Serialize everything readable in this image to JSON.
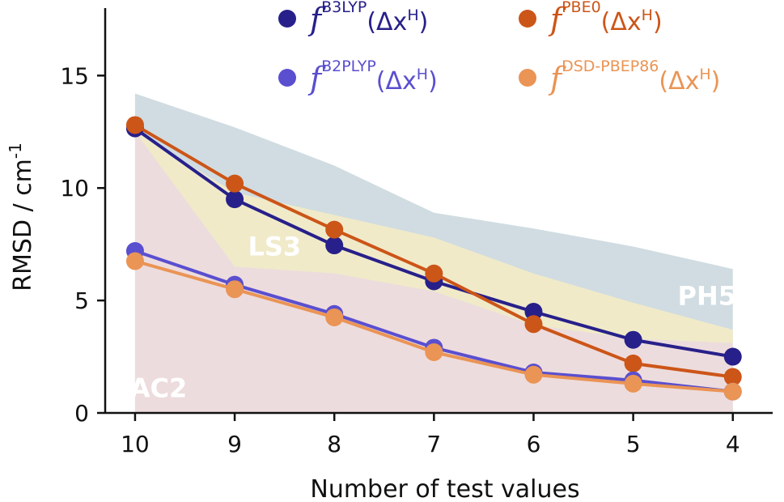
{
  "chart_data": {
    "type": "line",
    "title": "",
    "xlabel": "Number of test values",
    "ylabel_main": "RMSD / cm",
    "ylabel_sup": "-1",
    "x": [
      10,
      9,
      8,
      7,
      6,
      5,
      4
    ],
    "x_ticks": [
      "10",
      "9",
      "8",
      "7",
      "6",
      "5",
      "4"
    ],
    "xlim": [
      10.3,
      3.6
    ],
    "y_ticks": [
      "0",
      "5",
      "10",
      "15"
    ],
    "y_tick_values": [
      0,
      5,
      10,
      15
    ],
    "ylim": [
      0,
      18
    ],
    "grid": false,
    "legend_position": "top",
    "regions": [
      {
        "label": "PH5",
        "color": "#c8d6dc",
        "upper": [
          14.2,
          12.7,
          11.0,
          8.9,
          8.2,
          7.4,
          6.4
        ],
        "lower": [
          0,
          0,
          0,
          0,
          0,
          0,
          0
        ]
      },
      {
        "label": "LS3",
        "color": "#f6ecc4",
        "upper": [
          12.5,
          9.8,
          8.8,
          7.8,
          6.2,
          4.9,
          3.7
        ],
        "lower": [
          12.5,
          6.5,
          6.2,
          5.4,
          3.9,
          3.3,
          3.1
        ]
      },
      {
        "label": "AC2",
        "color": "#f2dcdc",
        "upper": [
          12.5,
          6.5,
          6.2,
          5.4,
          3.9,
          3.3,
          3.1
        ],
        "lower": [
          0,
          0,
          0,
          0,
          0,
          0,
          0
        ]
      }
    ],
    "series": [
      {
        "name_base": "f",
        "name_sup": "B3LYP",
        "name_arg": "(Δx",
        "name_argsup": "H",
        "name_close": ")",
        "color": "#27208a",
        "values": [
          12.65,
          9.5,
          7.45,
          5.85,
          4.5,
          3.25,
          2.5
        ]
      },
      {
        "name_base": "f",
        "name_sup": "PBE0",
        "name_arg": "(Δx",
        "name_argsup": "H",
        "name_close": ")",
        "color": "#cc5518",
        "values": [
          12.8,
          10.2,
          8.15,
          6.2,
          3.95,
          2.2,
          1.6
        ]
      },
      {
        "name_base": "f",
        "name_sup": "B2PLYP",
        "name_arg": "(Δx",
        "name_argsup": "H",
        "name_close": ")",
        "color": "#5a4fcf",
        "values": [
          7.2,
          5.7,
          4.4,
          2.9,
          1.8,
          1.45,
          0.95
        ]
      },
      {
        "name_base": "f",
        "name_sup": "DSD-PBEP86",
        "name_arg": "(Δx",
        "name_argsup": "H",
        "name_close": ")",
        "color": "#ea9455",
        "values": [
          6.75,
          5.5,
          4.25,
          2.7,
          1.7,
          1.3,
          0.95
        ]
      }
    ]
  }
}
